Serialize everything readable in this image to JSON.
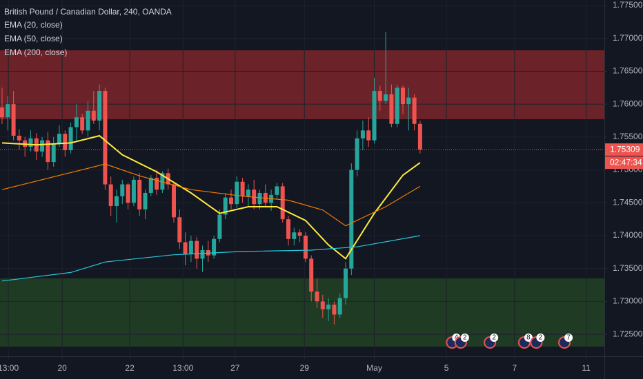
{
  "chart_data": {
    "type": "candlestick",
    "title": "British Pound / Canadian Dollar, 240, OANDA",
    "up_color": "#26a69a",
    "down_color": "#ef5350",
    "grid": true,
    "xlim": [
      -0.36,
      105.18
    ],
    "xticks": [
      {
        "value": 1.1,
        "label": "13:00"
      },
      {
        "value": 10.5,
        "label": "20"
      },
      {
        "value": 22.3,
        "label": "22"
      },
      {
        "value": 31.6,
        "label": "13:00"
      },
      {
        "value": 40.7,
        "label": "27"
      },
      {
        "value": 52.8,
        "label": "29"
      },
      {
        "value": 65,
        "label": "May"
      },
      {
        "value": 77.6,
        "label": "5"
      },
      {
        "value": 89.5,
        "label": "7"
      },
      {
        "value": 102,
        "label": "11"
      }
    ],
    "ylim": [
      1.72166,
      1.77584
    ],
    "yticks": [
      {
        "value": 1.725,
        "label": "1.72500"
      },
      {
        "value": 1.73,
        "label": "1.73000"
      },
      {
        "value": 1.735,
        "label": "1.73500"
      },
      {
        "value": 1.74,
        "label": "1.74000"
      },
      {
        "value": 1.745,
        "label": "1.74500"
      },
      {
        "value": 1.75,
        "label": "1.75000"
      },
      {
        "value": 1.755,
        "label": "1.75500"
      },
      {
        "value": 1.76,
        "label": "1.76000"
      },
      {
        "value": 1.765,
        "label": "1.76500"
      },
      {
        "value": 1.77,
        "label": "1.77000"
      },
      {
        "value": 1.775,
        "label": "1.77500"
      }
    ],
    "open": [
      1.7595,
      1.758,
      1.76,
      1.7552,
      1.7545,
      1.7535,
      1.7548,
      1.7528,
      1.7545,
      1.7512,
      1.754,
      1.7555,
      1.753,
      1.7565,
      1.758,
      1.756,
      1.759,
      1.7575,
      1.762,
      1.7478,
      1.7445,
      1.746,
      1.7478,
      1.745,
      1.7485,
      1.744,
      1.7465,
      1.7488,
      1.747,
      1.7495,
      1.7478,
      1.7428,
      1.739,
      1.7372,
      1.7392,
      1.7365,
      1.7378,
      1.737,
      1.7395,
      1.7432,
      1.7458,
      1.7448,
      1.7482,
      1.746,
      1.747,
      1.7448,
      1.7465,
      1.745,
      1.7462,
      1.7475,
      1.7425,
      1.7395,
      1.7405,
      1.74,
      1.7365,
      1.7315,
      1.73,
      1.7288,
      1.7295,
      1.728,
      1.7305,
      1.735,
      1.75,
      1.7548,
      1.756,
      1.7545,
      1.762,
      1.7605,
      1.7615,
      1.757,
      1.7625,
      1.76,
      1.761,
      1.757
    ],
    "high": [
      1.7625,
      1.7612,
      1.762,
      1.7562,
      1.755,
      1.756,
      1.7556,
      1.755,
      1.7558,
      1.755,
      1.7568,
      1.756,
      1.7572,
      1.76,
      1.7585,
      1.7605,
      1.762,
      1.763,
      1.7625,
      1.749,
      1.747,
      1.7485,
      1.748,
      1.749,
      1.7495,
      1.747,
      1.7492,
      1.75,
      1.7498,
      1.7502,
      1.748,
      1.744,
      1.7405,
      1.74,
      1.7398,
      1.7385,
      1.7392,
      1.74,
      1.744,
      1.7465,
      1.747,
      1.749,
      1.7488,
      1.7478,
      1.7485,
      1.747,
      1.7478,
      1.747,
      1.748,
      1.748,
      1.743,
      1.7412,
      1.741,
      1.7405,
      1.737,
      1.7335,
      1.731,
      1.7305,
      1.73,
      1.7312,
      1.736,
      1.751,
      1.756,
      1.7575,
      1.758,
      1.764,
      1.7628,
      1.771,
      1.763,
      1.763,
      1.7628,
      1.7625,
      1.7615,
      1.7575
    ],
    "low": [
      1.757,
      1.756,
      1.7545,
      1.753,
      1.752,
      1.7528,
      1.7515,
      1.752,
      1.75,
      1.7505,
      1.7535,
      1.752,
      1.7525,
      1.7545,
      1.7555,
      1.755,
      1.757,
      1.756,
      1.747,
      1.743,
      1.742,
      1.7448,
      1.744,
      1.7445,
      1.743,
      1.7425,
      1.746,
      1.7462,
      1.7465,
      1.747,
      1.742,
      1.738,
      1.7355,
      1.736,
      1.735,
      1.7345,
      1.736,
      1.7365,
      1.739,
      1.7425,
      1.744,
      1.7442,
      1.745,
      1.7445,
      1.744,
      1.744,
      1.7445,
      1.7438,
      1.7455,
      1.742,
      1.7385,
      1.7385,
      1.739,
      1.736,
      1.73,
      1.729,
      1.7275,
      1.727,
      1.7265,
      1.7275,
      1.7295,
      1.734,
      1.749,
      1.753,
      1.7535,
      1.754,
      1.759,
      1.76,
      1.7565,
      1.7565,
      1.7585,
      1.756,
      1.756,
      1.7525
    ],
    "close": [
      1.758,
      1.76,
      1.7552,
      1.7545,
      1.7535,
      1.7548,
      1.7528,
      1.7545,
      1.7512,
      1.754,
      1.7555,
      1.753,
      1.7565,
      1.758,
      1.756,
      1.759,
      1.7575,
      1.762,
      1.7478,
      1.7445,
      1.746,
      1.7478,
      1.745,
      1.7485,
      1.744,
      1.7465,
      1.7488,
      1.747,
      1.7495,
      1.7478,
      1.7428,
      1.739,
      1.7372,
      1.7392,
      1.7365,
      1.7378,
      1.737,
      1.7395,
      1.7432,
      1.7458,
      1.7448,
      1.7482,
      1.746,
      1.747,
      1.7448,
      1.7465,
      1.745,
      1.7462,
      1.7475,
      1.7425,
      1.7395,
      1.7405,
      1.74,
      1.7365,
      1.7315,
      1.73,
      1.7288,
      1.7295,
      1.728,
      1.7305,
      1.735,
      1.75,
      1.7548,
      1.756,
      1.7545,
      1.762,
      1.7605,
      1.7615,
      1.757,
      1.7625,
      1.76,
      1.761,
      1.757,
      1.75309
    ],
    "series": [
      {
        "name": "EMA (20, close)",
        "color": "#ffeb3b",
        "x": [
          0,
          6,
          12,
          17,
          21,
          27,
          33,
          38,
          43,
          48,
          53,
          57,
          60,
          65,
          70,
          73
        ],
        "values": [
          1.7541,
          1.7538,
          1.7541,
          1.7552,
          1.7523,
          1.7497,
          1.7465,
          1.7434,
          1.7444,
          1.7444,
          1.7423,
          1.7386,
          1.7365,
          1.7434,
          1.7492,
          1.7511
        ]
      },
      {
        "name": "EMA (50, close)",
        "color": "#f57c00",
        "x": [
          0,
          12,
          18,
          24,
          33,
          42,
          50,
          56,
          60,
          67,
          73
        ],
        "values": [
          1.747,
          1.7496,
          1.7509,
          1.7491,
          1.747,
          1.746,
          1.7454,
          1.7439,
          1.7415,
          1.7444,
          1.7475
        ]
      },
      {
        "name": "EMA (200, close)",
        "color": "#26c6da",
        "x": [
          0,
          12,
          18,
          30,
          42,
          54,
          62,
          73
        ],
        "values": [
          1.7331,
          1.7344,
          1.736,
          1.7371,
          1.7376,
          1.7378,
          1.7383,
          1.74
        ]
      }
    ],
    "zones": [
      {
        "from": 1.75771,
        "to": 1.76819,
        "color": "#6b2228"
      },
      {
        "from": 1.72312,
        "to": 1.7335,
        "color": "#1f3b24"
      }
    ],
    "price_line": {
      "value": 1.75309,
      "label": "1.75309"
    },
    "countdown": "02:47:34",
    "events": [
      {
        "x": 78.6,
        "label": "4"
      },
      {
        "x": 80.1,
        "label": "2"
      },
      {
        "x": 85.2,
        "label": "2"
      },
      {
        "x": 91.2,
        "label": "8"
      },
      {
        "x": 93.3,
        "label": "2"
      },
      {
        "x": 98.2,
        "label": "7"
      }
    ]
  }
}
